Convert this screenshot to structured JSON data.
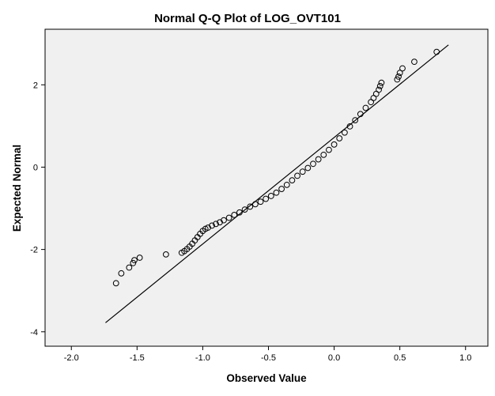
{
  "chart_data": {
    "type": "scatter",
    "title": "Normal Q-Q Plot of LOG_OVT101",
    "xlabel": "Observed Value",
    "ylabel": "Expected Normal",
    "xlim": [
      -2.2,
      1.17
    ],
    "ylim": [
      -4.35,
      3.35
    ],
    "xticks": [
      -2.0,
      -1.5,
      -1.0,
      -0.5,
      0.0,
      0.5,
      1.0
    ],
    "xtick_labels": [
      "-2.0",
      "-1.5",
      "-1.0",
      "-0.5",
      "0.0",
      "0.5",
      "1.0"
    ],
    "yticks": [
      -4,
      -2,
      0,
      2
    ],
    "ytick_labels": [
      "-4",
      "-2",
      "0",
      "2"
    ],
    "grid": false,
    "plot_background": "#f0f0f0",
    "marker": "open-circle",
    "reference_line": {
      "x": [
        -1.74,
        0.87
      ],
      "y": [
        -3.78,
        2.97
      ]
    },
    "points": {
      "x": [
        -1.66,
        -1.62,
        -1.56,
        -1.53,
        -1.52,
        -1.48,
        -1.28,
        -1.16,
        -1.14,
        -1.12,
        -1.1,
        -1.08,
        -1.06,
        -1.04,
        -1.02,
        -1.0,
        -0.98,
        -0.96,
        -0.93,
        -0.9,
        -0.87,
        -0.84,
        -0.8,
        -0.76,
        -0.72,
        -0.68,
        -0.64,
        -0.6,
        -0.56,
        -0.52,
        -0.48,
        -0.44,
        -0.4,
        -0.36,
        -0.32,
        -0.28,
        -0.24,
        -0.2,
        -0.16,
        -0.12,
        -0.08,
        -0.04,
        0.0,
        0.04,
        0.08,
        0.12,
        0.16,
        0.2,
        0.24,
        0.28,
        0.3,
        0.32,
        0.34,
        0.35,
        0.36,
        0.48,
        0.49,
        0.5,
        0.52,
        0.61,
        0.78
      ],
      "y": [
        -2.82,
        -2.58,
        -2.44,
        -2.33,
        -2.26,
        -2.2,
        -2.12,
        -2.08,
        -2.04,
        -1.99,
        -1.93,
        -1.86,
        -1.78,
        -1.7,
        -1.62,
        -1.55,
        -1.5,
        -1.47,
        -1.42,
        -1.38,
        -1.34,
        -1.29,
        -1.23,
        -1.16,
        -1.1,
        -1.03,
        -0.96,
        -0.9,
        -0.84,
        -0.77,
        -0.7,
        -0.62,
        -0.53,
        -0.43,
        -0.32,
        -0.21,
        -0.11,
        -0.02,
        0.08,
        0.19,
        0.3,
        0.42,
        0.55,
        0.7,
        0.84,
        0.99,
        1.14,
        1.29,
        1.44,
        1.58,
        1.68,
        1.78,
        1.88,
        1.97,
        2.05,
        2.13,
        2.2,
        2.29,
        2.4,
        2.56,
        2.8
      ]
    }
  }
}
